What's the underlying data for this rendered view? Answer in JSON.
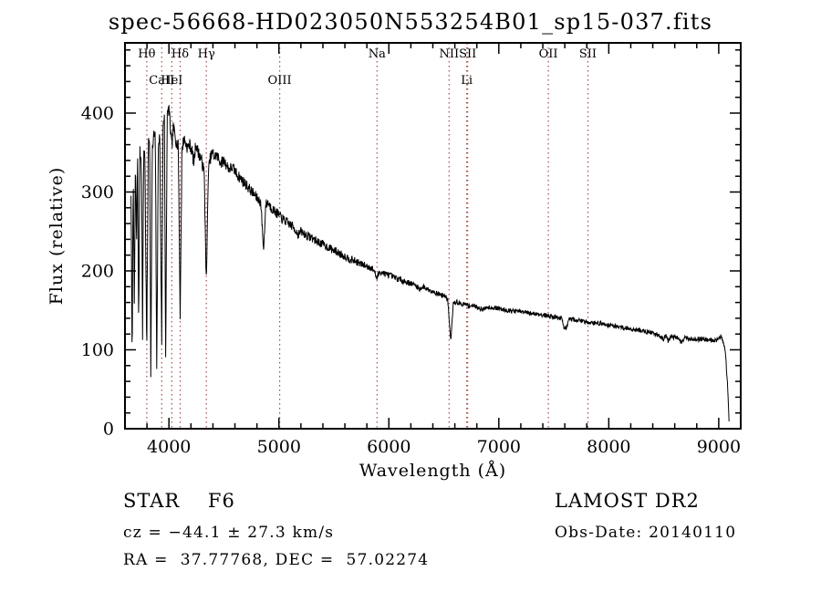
{
  "chart_data": {
    "type": "line",
    "title": "spec-56668-HD023050N553254B01_sp15-037.fits",
    "xlabel": "Wavelength (Å)",
    "ylabel": "Flux (relative)",
    "xlim": [
      3600,
      9200
    ],
    "ylim": [
      0,
      489
    ],
    "xticks": [
      4000,
      5000,
      6000,
      7000,
      8000,
      9000
    ],
    "yticks": [
      0,
      100,
      200,
      300,
      400
    ],
    "x_minor_step": 200,
    "y_minor_step": 20,
    "grid": false,
    "legend": "none",
    "series_color": "#000000",
    "marker_color": "#a34d4d",
    "line_markers": [
      {
        "label": "Hθ",
        "wavelength": 3798,
        "row": 1
      },
      {
        "label": "CaII",
        "wavelength": 3934,
        "row": 2
      },
      {
        "label": "HeI",
        "wavelength": 4026,
        "row": 2
      },
      {
        "label": "Hδ",
        "wavelength": 4102,
        "row": 1
      },
      {
        "label": "Hγ",
        "wavelength": 4340,
        "row": 1
      },
      {
        "label": "OIII",
        "wavelength": 5007,
        "row": 2
      },
      {
        "label": "Na",
        "wavelength": 5892,
        "row": 1
      },
      {
        "label": "NII",
        "wavelength": 6548,
        "row": 1
      },
      {
        "label": "SII",
        "wavelength": 6717,
        "row": 1
      },
      {
        "label": "Li",
        "wavelength": 6708,
        "row": 2
      },
      {
        "label": "OII",
        "wavelength": 7450,
        "row": 1
      },
      {
        "label": "SII",
        "wavelength": 7810,
        "row": 1
      }
    ],
    "noise": {
      "blue_amp": 9,
      "red_amp": 3,
      "seed": 7
    },
    "spectrum_anchors": [
      [
        3655,
        300
      ],
      [
        3665,
        80
      ],
      [
        3675,
        330
      ],
      [
        3685,
        150
      ],
      [
        3695,
        340
      ],
      [
        3705,
        230
      ],
      [
        3715,
        345
      ],
      [
        3725,
        120
      ],
      [
        3735,
        350
      ],
      [
        3750,
        340
      ],
      [
        3760,
        120
      ],
      [
        3770,
        350
      ],
      [
        3780,
        355
      ],
      [
        3798,
        95
      ],
      [
        3812,
        360
      ],
      [
        3825,
        368
      ],
      [
        3835,
        62
      ],
      [
        3848,
        350
      ],
      [
        3862,
        372
      ],
      [
        3876,
        368
      ],
      [
        3889,
        68
      ],
      [
        3902,
        345
      ],
      [
        3915,
        378
      ],
      [
        3934,
        112
      ],
      [
        3946,
        385
      ],
      [
        3958,
        400
      ],
      [
        3970,
        86
      ],
      [
        3984,
        396
      ],
      [
        4000,
        406
      ],
      [
        4012,
        382
      ],
      [
        4026,
        356
      ],
      [
        4040,
        382
      ],
      [
        4055,
        372
      ],
      [
        4070,
        362
      ],
      [
        4085,
        358
      ],
      [
        4102,
        146
      ],
      [
        4118,
        352
      ],
      [
        4135,
        368
      ],
      [
        4150,
        362
      ],
      [
        4170,
        356
      ],
      [
        4190,
        360
      ],
      [
        4210,
        352
      ],
      [
        4226,
        336
      ],
      [
        4245,
        362
      ],
      [
        4262,
        352
      ],
      [
        4280,
        346
      ],
      [
        4300,
        338
      ],
      [
        4320,
        326
      ],
      [
        4340,
        182
      ],
      [
        4358,
        326
      ],
      [
        4375,
        342
      ],
      [
        4395,
        350
      ],
      [
        4415,
        344
      ],
      [
        4435,
        347
      ],
      [
        4455,
        341
      ],
      [
        4475,
        337
      ],
      [
        4500,
        340
      ],
      [
        4525,
        334
      ],
      [
        4550,
        329
      ],
      [
        4575,
        331
      ],
      [
        4600,
        327
      ],
      [
        4630,
        320
      ],
      [
        4660,
        316
      ],
      [
        4690,
        311
      ],
      [
        4720,
        306
      ],
      [
        4750,
        301
      ],
      [
        4780,
        296
      ],
      [
        4810,
        291
      ],
      [
        4835,
        287
      ],
      [
        4861,
        226
      ],
      [
        4880,
        284
      ],
      [
        4900,
        287
      ],
      [
        4925,
        281
      ],
      [
        4950,
        277
      ],
      [
        4975,
        274
      ],
      [
        5000,
        271
      ],
      [
        5030,
        266
      ],
      [
        5060,
        263
      ],
      [
        5090,
        260
      ],
      [
        5120,
        257
      ],
      [
        5150,
        252
      ],
      [
        5175,
        246
      ],
      [
        5200,
        250
      ],
      [
        5230,
        247
      ],
      [
        5260,
        244
      ],
      [
        5300,
        242
      ],
      [
        5340,
        238
      ],
      [
        5380,
        235
      ],
      [
        5420,
        232
      ],
      [
        5460,
        229
      ],
      [
        5500,
        226
      ],
      [
        5540,
        223
      ],
      [
        5580,
        220
      ],
      [
        5620,
        217
      ],
      [
        5660,
        214
      ],
      [
        5700,
        212
      ],
      [
        5740,
        209
      ],
      [
        5780,
        207
      ],
      [
        5820,
        205
      ],
      [
        5860,
        202
      ],
      [
        5892,
        190
      ],
      [
        5915,
        199
      ],
      [
        5940,
        198
      ],
      [
        5970,
        196
      ],
      [
        6000,
        195
      ],
      [
        6040,
        192
      ],
      [
        6080,
        190
      ],
      [
        6120,
        188
      ],
      [
        6160,
        186
      ],
      [
        6200,
        184
      ],
      [
        6240,
        182
      ],
      [
        6280,
        177
      ],
      [
        6310,
        180
      ],
      [
        6350,
        177
      ],
      [
        6390,
        175
      ],
      [
        6430,
        172
      ],
      [
        6470,
        170
      ],
      [
        6510,
        168
      ],
      [
        6535,
        164
      ],
      [
        6563,
        110
      ],
      [
        6585,
        158
      ],
      [
        6610,
        161
      ],
      [
        6640,
        159
      ],
      [
        6670,
        158
      ],
      [
        6700,
        157
      ],
      [
        6730,
        156
      ],
      [
        6760,
        156
      ],
      [
        6790,
        155
      ],
      [
        6820,
        153
      ],
      [
        6860,
        151
      ],
      [
        6890,
        154
      ],
      [
        6920,
        154
      ],
      [
        6950,
        153
      ],
      [
        6980,
        153
      ],
      [
        7010,
        152
      ],
      [
        7050,
        151
      ],
      [
        7090,
        150
      ],
      [
        7130,
        149
      ],
      [
        7170,
        149
      ],
      [
        7210,
        148
      ],
      [
        7250,
        147
      ],
      [
        7290,
        146
      ],
      [
        7330,
        146
      ],
      [
        7370,
        145
      ],
      [
        7410,
        144
      ],
      [
        7450,
        143
      ],
      [
        7490,
        142
      ],
      [
        7530,
        141
      ],
      [
        7570,
        140
      ],
      [
        7594,
        129
      ],
      [
        7615,
        127
      ],
      [
        7640,
        138
      ],
      [
        7670,
        139
      ],
      [
        7700,
        138
      ],
      [
        7740,
        137
      ],
      [
        7780,
        136
      ],
      [
        7820,
        135
      ],
      [
        7860,
        134
      ],
      [
        7900,
        134
      ],
      [
        7940,
        133
      ],
      [
        7980,
        132
      ],
      [
        8020,
        131
      ],
      [
        8060,
        130
      ],
      [
        8100,
        129
      ],
      [
        8140,
        128
      ],
      [
        8180,
        127
      ],
      [
        8220,
        126
      ],
      [
        8260,
        125
      ],
      [
        8300,
        124
      ],
      [
        8340,
        123
      ],
      [
        8380,
        122
      ],
      [
        8420,
        120
      ],
      [
        8460,
        119
      ],
      [
        8498,
        113
      ],
      [
        8520,
        118
      ],
      [
        8542,
        111
      ],
      [
        8565,
        117
      ],
      [
        8600,
        116
      ],
      [
        8630,
        115
      ],
      [
        8662,
        109
      ],
      [
        8690,
        115
      ],
      [
        8730,
        114
      ],
      [
        8770,
        114
      ],
      [
        8810,
        113
      ],
      [
        8850,
        114
      ],
      [
        8890,
        113
      ],
      [
        8930,
        113
      ],
      [
        8970,
        112
      ],
      [
        9000,
        113
      ],
      [
        9020,
        117
      ],
      [
        9040,
        111
      ],
      [
        9060,
        100
      ],
      [
        9080,
        55
      ],
      [
        9095,
        8
      ]
    ]
  },
  "annotations": {
    "class_line": "STAR    F6",
    "survey": "LAMOST DR2",
    "cz_line": "cz = −44.1 ± 27.3 km/s",
    "obs_date_line": "Obs-Date: 20140110",
    "radec_line": "RA =  37.77768, DEC =  57.02274"
  }
}
